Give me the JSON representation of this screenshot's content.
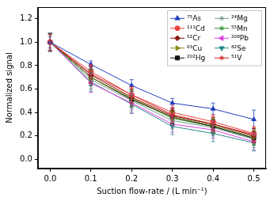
{
  "chart_data": {
    "type": "line",
    "x_label": "Suction flow-rate / (L min⁻¹)",
    "y_label": "Normalized signal",
    "x": [
      0,
      0.1,
      0.2,
      0.3,
      0.4,
      0.5
    ],
    "xlim": [
      -0.03,
      0.53
    ],
    "xticks": [
      {
        "value": 0,
        "label": "0.0"
      },
      0.1,
      0.2,
      0.3,
      0.4,
      0.5
    ],
    "ylim": [
      -0.08,
      1.3
    ],
    "yticks": [
      {
        "value": 0,
        "label": "0.0"
      },
      0.2,
      0.4,
      0.6,
      0.8,
      {
        "value": 1,
        "label": "1.0"
      },
      1.2
    ],
    "grid": false,
    "legend": "upper right",
    "series": [
      {
        "name": "⁷⁵As",
        "color": "#1f3fbf",
        "marker": "triangle",
        "values": [
          1.0,
          0.81,
          0.63,
          0.48,
          0.43,
          0.34
        ],
        "errors": [
          0.05,
          0.03,
          0.05,
          0.04,
          0.05,
          0.08
        ]
      },
      {
        "name": "¹¹¹Cd",
        "color": "#e8413a",
        "marker": "circle",
        "values": [
          1.0,
          0.75,
          0.55,
          0.4,
          0.32,
          0.22
        ],
        "errors": [
          0.07,
          0.06,
          0.06,
          0.06,
          0.06,
          0.06
        ]
      },
      {
        "name": "⁵²Cr",
        "color": "#8b1010",
        "marker": "diamond",
        "values": [
          1.0,
          0.72,
          0.53,
          0.37,
          0.3,
          0.2
        ],
        "errors": [
          0.07,
          0.07,
          0.07,
          0.06,
          0.06,
          0.06
        ]
      },
      {
        "name": "⁶³Cu",
        "color": "#8a8a1a",
        "marker": "triangle_right",
        "values": [
          1.0,
          0.7,
          0.52,
          0.36,
          0.29,
          0.19
        ],
        "errors": [
          0.07,
          0.07,
          0.07,
          0.06,
          0.06,
          0.06
        ]
      },
      {
        "name": "²⁰²Hg",
        "color": "#111111",
        "marker": "square",
        "values": [
          1.0,
          0.7,
          0.51,
          0.36,
          0.28,
          0.18
        ],
        "errors": [
          0.07,
          0.07,
          0.07,
          0.06,
          0.06,
          0.06
        ]
      },
      {
        "name": "²⁴Mg",
        "color": "#6f9a86",
        "marker": "star",
        "values": [
          1.0,
          0.68,
          0.5,
          0.33,
          0.27,
          0.17
        ],
        "errors": [
          0.08,
          0.08,
          0.08,
          0.07,
          0.07,
          0.07
        ]
      },
      {
        "name": "⁵⁵Mn",
        "color": "#2a8a2a",
        "marker": "star",
        "values": [
          1.0,
          0.7,
          0.52,
          0.35,
          0.28,
          0.18
        ],
        "errors": [
          0.07,
          0.07,
          0.07,
          0.06,
          0.06,
          0.06
        ]
      },
      {
        "name": "²⁰⁸Pb",
        "color": "#e040e0",
        "marker": "triangle_left",
        "values": [
          1.0,
          0.65,
          0.48,
          0.3,
          0.25,
          0.15
        ],
        "errors": [
          0.08,
          0.08,
          0.08,
          0.07,
          0.07,
          0.07
        ]
      },
      {
        "name": "⁸²Se",
        "color": "#2a8a8a",
        "marker": "triangle_down",
        "values": [
          1.0,
          0.66,
          0.47,
          0.28,
          0.22,
          0.14
        ],
        "errors": [
          0.08,
          0.08,
          0.08,
          0.07,
          0.07,
          0.07
        ]
      },
      {
        "name": "⁵¹V",
        "color": "#d02020",
        "marker": "star",
        "values": [
          1.0,
          0.73,
          0.55,
          0.38,
          0.3,
          0.21
        ],
        "errors": [
          0.07,
          0.07,
          0.07,
          0.06,
          0.06,
          0.06
        ]
      }
    ]
  }
}
